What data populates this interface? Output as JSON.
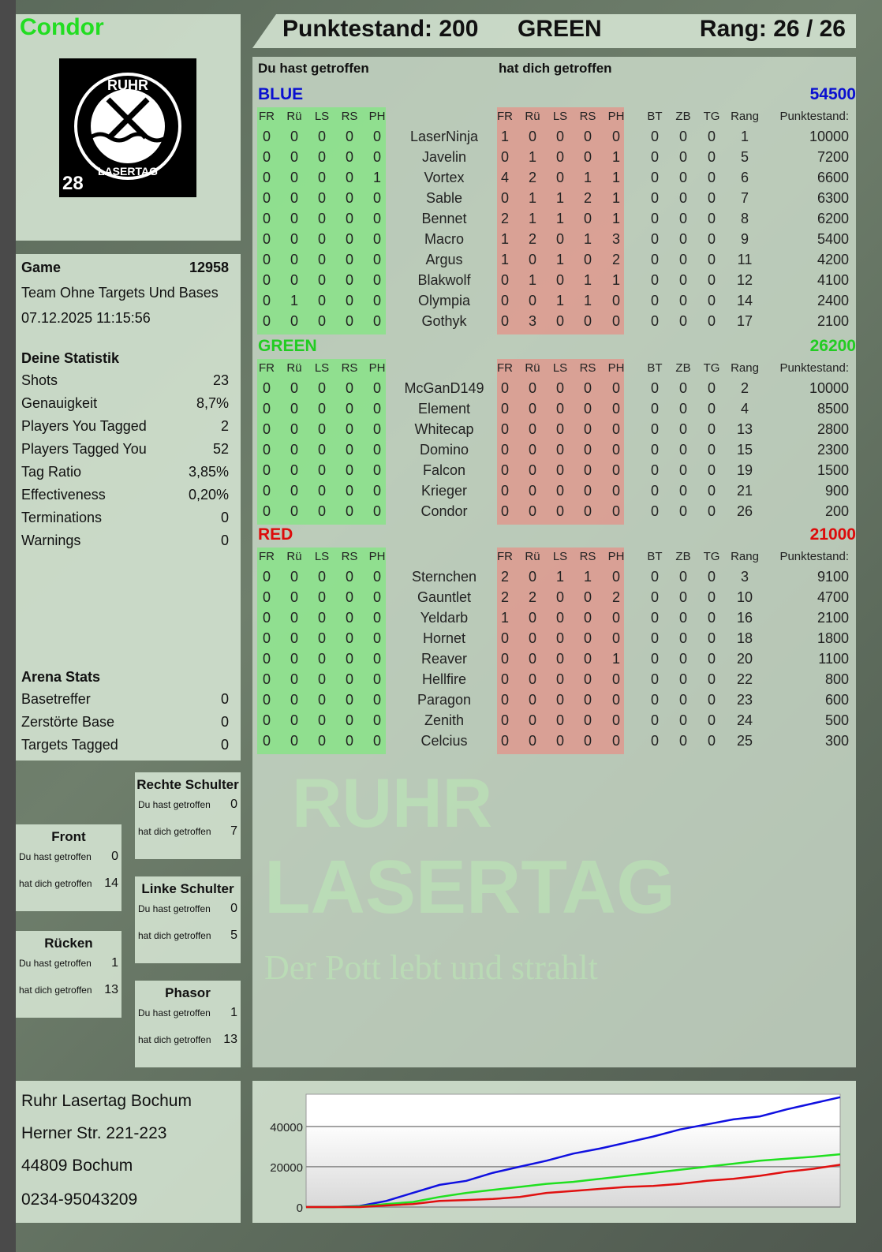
{
  "header": {
    "player": "Condor",
    "score_label": "Punktestand: 200",
    "team": "GREEN",
    "rank_label": "Rang: 26 / 26"
  },
  "logo": {
    "text_top": "RUHR",
    "text_bottom": "LASERTAG",
    "number": "28"
  },
  "game": {
    "label": "Game",
    "id": "12958",
    "mode": "Team Ohne Targets Und Bases",
    "datetime": "07.12.2025 11:15:56"
  },
  "stats": {
    "title": "Deine Statistik",
    "items": [
      {
        "label": "Shots",
        "value": "23"
      },
      {
        "label": "Genauigkeit",
        "value": "8,7%"
      },
      {
        "label": "Players You Tagged",
        "value": "2"
      },
      {
        "label": "Players Tagged You",
        "value": "52"
      },
      {
        "label": "Tag Ratio",
        "value": "3,85%"
      },
      {
        "label": "Effectiveness",
        "value": "0,20%"
      },
      {
        "label": "Terminations",
        "value": "0"
      },
      {
        "label": "Warnings",
        "value": "0"
      }
    ]
  },
  "arena": {
    "title": "Arena Stats",
    "items": [
      {
        "label": "Basetreffer",
        "value": "0"
      },
      {
        "label": "Zerstörte Base",
        "value": "0"
      },
      {
        "label": "Targets Tagged",
        "value": "0"
      }
    ]
  },
  "zones": [
    {
      "title": "Rechte Schulter",
      "hit_label": "Du hast getroffen",
      "hit": "0",
      "got_label": "hat dich getroffen",
      "got": "7"
    },
    {
      "title": "Front",
      "hit_label": "Du hast getroffen",
      "hit": "0",
      "got_label": "hat dich getroffen",
      "got": "14"
    },
    {
      "title": "Linke Schulter",
      "hit_label": "Du hast getroffen",
      "hit": "0",
      "got_label": "hat dich getroffen",
      "got": "5"
    },
    {
      "title": "Rücken",
      "hit_label": "Du hast getroffen",
      "hit": "1",
      "got_label": "hat dich getroffen",
      "got": "13"
    },
    {
      "title": "Phasor",
      "hit_label": "Du hast getroffen",
      "hit": "1",
      "got_label": "hat dich getroffen",
      "got": "13"
    }
  ],
  "address": {
    "name": "Ruhr Lasertag Bochum",
    "street": "Herner Str. 221-223",
    "city": "44809 Bochum",
    "phone": "0234-95043209"
  },
  "table": {
    "you_hit": "Du hast getroffen",
    "hit_you": "hat dich getroffen",
    "hit_cols": [
      "FR",
      "Rü",
      "LS",
      "RS",
      "PH"
    ],
    "extra_cols": [
      "BT",
      "ZB",
      "TG",
      "Rang",
      "Punktestand:"
    ],
    "teams": [
      {
        "name": "BLUE",
        "total": "54500",
        "color": "#0a10d0",
        "players": [
          [
            "LaserNinja",
            [
              0,
              0,
              0,
              0,
              0
            ],
            [
              1,
              0,
              0,
              0,
              0
            ],
            [
              0,
              0,
              0
            ],
            1,
            10000
          ],
          [
            "Javelin",
            [
              0,
              0,
              0,
              0,
              0
            ],
            [
              0,
              1,
              0,
              0,
              1
            ],
            [
              0,
              0,
              0
            ],
            5,
            7200
          ],
          [
            "Vortex",
            [
              0,
              0,
              0,
              0,
              1
            ],
            [
              4,
              2,
              0,
              1,
              1
            ],
            [
              0,
              0,
              0
            ],
            6,
            6600
          ],
          [
            "Sable",
            [
              0,
              0,
              0,
              0,
              0
            ],
            [
              0,
              1,
              1,
              2,
              1
            ],
            [
              0,
              0,
              0
            ],
            7,
            6300
          ],
          [
            "Bennet",
            [
              0,
              0,
              0,
              0,
              0
            ],
            [
              2,
              1,
              1,
              0,
              1
            ],
            [
              0,
              0,
              0
            ],
            8,
            6200
          ],
          [
            "Macro",
            [
              0,
              0,
              0,
              0,
              0
            ],
            [
              1,
              2,
              0,
              1,
              3
            ],
            [
              0,
              0,
              0
            ],
            9,
            5400
          ],
          [
            "Argus",
            [
              0,
              0,
              0,
              0,
              0
            ],
            [
              1,
              0,
              1,
              0,
              2
            ],
            [
              0,
              0,
              0
            ],
            11,
            4200
          ],
          [
            "Blakwolf",
            [
              0,
              0,
              0,
              0,
              0
            ],
            [
              0,
              1,
              0,
              1,
              1
            ],
            [
              0,
              0,
              0
            ],
            12,
            4100
          ],
          [
            "Olympia",
            [
              0,
              1,
              0,
              0,
              0
            ],
            [
              0,
              0,
              1,
              1,
              0
            ],
            [
              0,
              0,
              0
            ],
            14,
            2400
          ],
          [
            "Gothyk",
            [
              0,
              0,
              0,
              0,
              0
            ],
            [
              0,
              3,
              0,
              0,
              0
            ],
            [
              0,
              0,
              0
            ],
            17,
            2100
          ]
        ]
      },
      {
        "name": "GREEN",
        "total": "26200",
        "color": "#22cc22",
        "players": [
          [
            "McGanD149",
            [
              0,
              0,
              0,
              0,
              0
            ],
            [
              0,
              0,
              0,
              0,
              0
            ],
            [
              0,
              0,
              0
            ],
            2,
            10000
          ],
          [
            "Element",
            [
              0,
              0,
              0,
              0,
              0
            ],
            [
              0,
              0,
              0,
              0,
              0
            ],
            [
              0,
              0,
              0
            ],
            4,
            8500
          ],
          [
            "Whitecap",
            [
              0,
              0,
              0,
              0,
              0
            ],
            [
              0,
              0,
              0,
              0,
              0
            ],
            [
              0,
              0,
              0
            ],
            13,
            2800
          ],
          [
            "Domino",
            [
              0,
              0,
              0,
              0,
              0
            ],
            [
              0,
              0,
              0,
              0,
              0
            ],
            [
              0,
              0,
              0
            ],
            15,
            2300
          ],
          [
            "Falcon",
            [
              0,
              0,
              0,
              0,
              0
            ],
            [
              0,
              0,
              0,
              0,
              0
            ],
            [
              0,
              0,
              0
            ],
            19,
            1500
          ],
          [
            "Krieger",
            [
              0,
              0,
              0,
              0,
              0
            ],
            [
              0,
              0,
              0,
              0,
              0
            ],
            [
              0,
              0,
              0
            ],
            21,
            900
          ],
          [
            "Condor",
            [
              0,
              0,
              0,
              0,
              0
            ],
            [
              0,
              0,
              0,
              0,
              0
            ],
            [
              0,
              0,
              0
            ],
            26,
            200
          ]
        ]
      },
      {
        "name": "RED",
        "total": "21000",
        "color": "#dd0a0a",
        "players": [
          [
            "Sternchen",
            [
              0,
              0,
              0,
              0,
              0
            ],
            [
              2,
              0,
              1,
              1,
              0
            ],
            [
              0,
              0,
              0
            ],
            3,
            9100
          ],
          [
            "Gauntlet",
            [
              0,
              0,
              0,
              0,
              0
            ],
            [
              2,
              2,
              0,
              0,
              2
            ],
            [
              0,
              0,
              0
            ],
            10,
            4700
          ],
          [
            "Yeldarb",
            [
              0,
              0,
              0,
              0,
              0
            ],
            [
              1,
              0,
              0,
              0,
              0
            ],
            [
              0,
              0,
              0
            ],
            16,
            2100
          ],
          [
            "Hornet",
            [
              0,
              0,
              0,
              0,
              0
            ],
            [
              0,
              0,
              0,
              0,
              0
            ],
            [
              0,
              0,
              0
            ],
            18,
            1800
          ],
          [
            "Reaver",
            [
              0,
              0,
              0,
              0,
              0
            ],
            [
              0,
              0,
              0,
              0,
              1
            ],
            [
              0,
              0,
              0
            ],
            20,
            1100
          ],
          [
            "Hellfire",
            [
              0,
              0,
              0,
              0,
              0
            ],
            [
              0,
              0,
              0,
              0,
              0
            ],
            [
              0,
              0,
              0
            ],
            22,
            800
          ],
          [
            "Paragon",
            [
              0,
              0,
              0,
              0,
              0
            ],
            [
              0,
              0,
              0,
              0,
              0
            ],
            [
              0,
              0,
              0
            ],
            23,
            600
          ],
          [
            "Zenith",
            [
              0,
              0,
              0,
              0,
              0
            ],
            [
              0,
              0,
              0,
              0,
              0
            ],
            [
              0,
              0,
              0
            ],
            24,
            500
          ],
          [
            "Celcius",
            [
              0,
              0,
              0,
              0,
              0
            ],
            [
              0,
              0,
              0,
              0,
              0
            ],
            [
              0,
              0,
              0
            ],
            25,
            300
          ]
        ]
      }
    ]
  },
  "watermark": {
    "line1": "RUHR",
    "line2": "LASERTAG",
    "tagline": "Der Pott lebt und strahlt"
  },
  "chart_data": {
    "type": "line",
    "ylim": [
      0,
      56000
    ],
    "yticks": [
      "40000",
      "20000",
      "0"
    ],
    "grid": true,
    "x": [
      0,
      1,
      2,
      3,
      4,
      5,
      6,
      7,
      8,
      9,
      10,
      11,
      12,
      13,
      14,
      15,
      16,
      17,
      18,
      19,
      20
    ],
    "series": [
      {
        "color": "#1010e0",
        "values": [
          0,
          0,
          500,
          3000,
          7000,
          11000,
          13000,
          17000,
          20000,
          23000,
          26500,
          29000,
          32000,
          35000,
          38500,
          41000,
          43500,
          45000,
          48500,
          51500,
          54500
        ]
      },
      {
        "color": "#20e020",
        "values": [
          0,
          0,
          300,
          1500,
          2500,
          5000,
          7000,
          8500,
          10000,
          11500,
          12500,
          14000,
          15500,
          17000,
          18500,
          20000,
          21500,
          23000,
          24000,
          25000,
          26200
        ]
      },
      {
        "color": "#e01010",
        "values": [
          0,
          0,
          0,
          800,
          1500,
          3000,
          3500,
          4000,
          5000,
          7000,
          8000,
          9000,
          10000,
          10500,
          11500,
          13000,
          14000,
          15500,
          17500,
          19000,
          21000
        ]
      }
    ]
  }
}
